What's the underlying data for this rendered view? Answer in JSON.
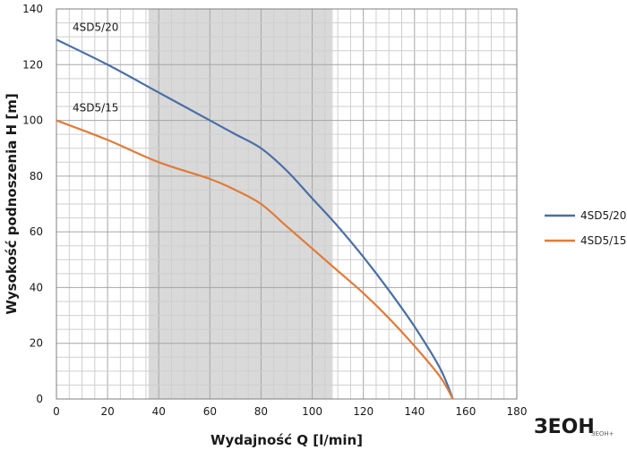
{
  "chart_data": {
    "type": "line",
    "title": "",
    "xlabel": "Wydajność Q [l/min]",
    "ylabel": "Wysokość podnoszenia H [m]",
    "xlim": [
      0,
      180
    ],
    "ylim": [
      0,
      140
    ],
    "x_ticks": [
      "0",
      "20",
      "40",
      "60",
      "80",
      "100",
      "120",
      "140",
      "160",
      "180"
    ],
    "y_ticks": [
      "0",
      "20",
      "40",
      "60",
      "80",
      "100",
      "120",
      "140"
    ],
    "grid": true,
    "highlight_band": {
      "x_from": 36,
      "x_to": 108,
      "color": "#d9d9d9"
    },
    "legend_position": "right",
    "series": [
      {
        "name": "4SD5/20",
        "color": "#4a6fa5",
        "x": [
          0,
          20,
          40,
          60,
          70,
          80,
          90,
          100,
          110,
          120,
          130,
          140,
          150,
          155
        ],
        "y": [
          129,
          120,
          110,
          100,
          95,
          90,
          82,
          72,
          62,
          51,
          39,
          26,
          11,
          0
        ]
      },
      {
        "name": "4SD5/15",
        "color": "#e07b39",
        "x": [
          0,
          20,
          40,
          60,
          70,
          80,
          90,
          100,
          110,
          120,
          130,
          140,
          150,
          155
        ],
        "y": [
          100,
          93,
          85,
          79,
          75,
          70,
          62,
          54,
          46,
          38,
          29,
          19,
          8,
          0
        ]
      }
    ]
  },
  "branding": {
    "logo_text": "ЗЕОН",
    "logo_sub": "ЗЕОН+"
  }
}
